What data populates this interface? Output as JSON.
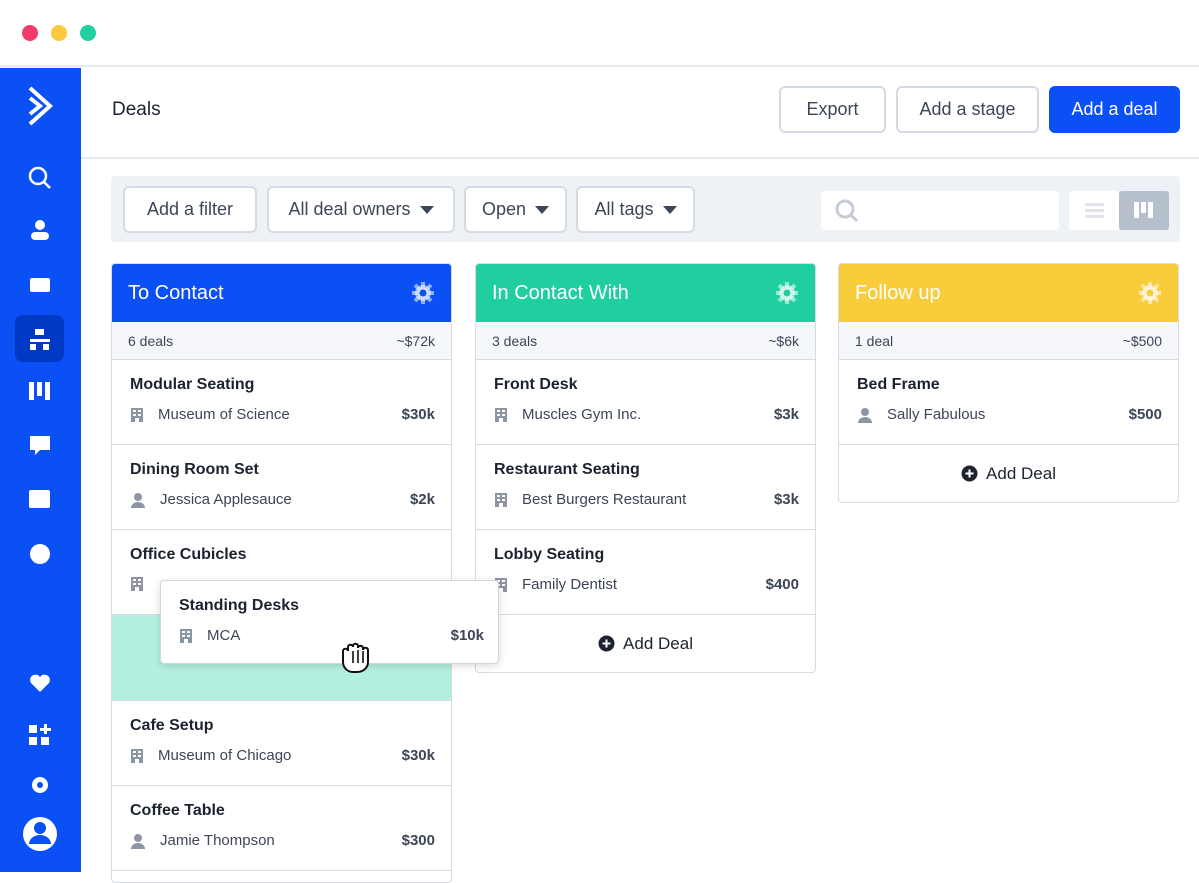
{
  "header": {
    "title": "Deals",
    "buttons": [
      "Export",
      "Add a stage",
      "Add a deal"
    ]
  },
  "filters": [
    "Add a filter",
    "All deal owners",
    "Open",
    "All tags"
  ],
  "columns": [
    {
      "title": "To Contact",
      "color": "#0a50f5",
      "count": "6 deals",
      "total": "~$72k",
      "cards": [
        {
          "name": "Modular Seating",
          "icon": "company",
          "contact": "Museum of Science",
          "amount": "$30k"
        },
        {
          "name": "Dining Room Set",
          "icon": "person",
          "contact": "Jessica Applesauce",
          "amount": "$2k"
        },
        {
          "name": "Office Cubicles",
          "icon": "company"
        },
        {
          "name": "Standing Desks",
          "icon": "company",
          "contact": "MCA",
          "amount": "$10k",
          "dragging": true
        },
        {
          "name": "Cafe Setup",
          "icon": "company",
          "contact": "Museum of Chicago",
          "amount": "$30k"
        },
        {
          "name": "Coffee Table",
          "icon": "person",
          "contact": "Jamie Thompson",
          "amount": "$300"
        }
      ]
    },
    {
      "title": "In Contact With",
      "color": "#1fcfa0",
      "count": "3 deals",
      "total": "~$6k",
      "add_deal": "Add Deal",
      "cards": [
        {
          "name": "Front Desk",
          "icon": "company",
          "contact": "Muscles Gym Inc.",
          "amount": "$3k"
        },
        {
          "name": "Restaurant Seating",
          "icon": "company",
          "contact": "Best Burgers Restaurant",
          "amount": "$3k"
        },
        {
          "name": "Lobby Seating",
          "icon": "company",
          "contact": "Family Dentist",
          "amount": "$400"
        }
      ]
    },
    {
      "title": "Follow up",
      "color": "#f8cc3b",
      "count": "1 deal",
      "total": "~$500",
      "add_deal": "Add Deal",
      "cards": [
        {
          "name": "Bed Frame",
          "icon": "person",
          "contact": "Sally Fabulous",
          "amount": "$500"
        }
      ]
    }
  ]
}
